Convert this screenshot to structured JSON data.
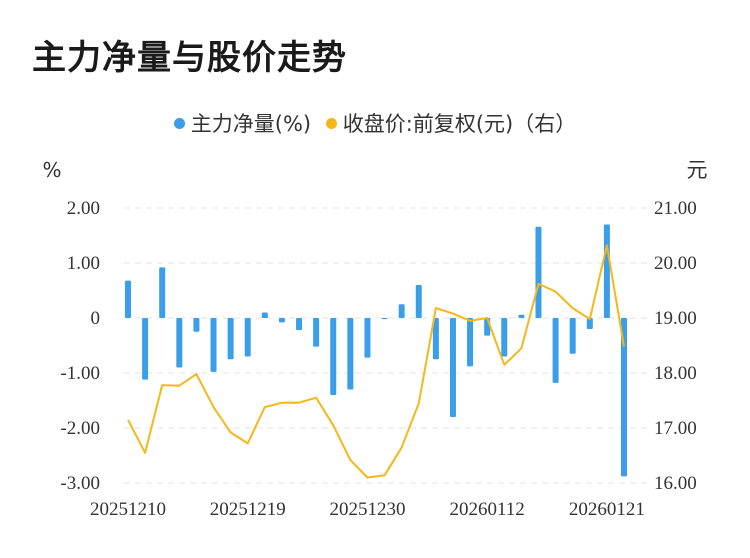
{
  "title": "主力净量与股价走势",
  "colors": {
    "bar": "#3b9ee8",
    "line": "#f5b71a",
    "grid": "#e3e3e3",
    "axis_text": "#333333"
  },
  "chart_data": {
    "type": "bar+line",
    "legend": {
      "position": "top-center",
      "entries": [
        "主力净量(%)",
        "收盘价:前复权(元)（右）"
      ]
    },
    "y_left": {
      "unit": "%",
      "min": -3.0,
      "max": 2.0,
      "ticks": [
        "2.00",
        "1.00",
        "0",
        "-1.00",
        "-2.00",
        "-3.00"
      ]
    },
    "y_right": {
      "unit": "元",
      "min": 16.0,
      "max": 21.0,
      "ticks": [
        "21.00",
        "20.00",
        "19.00",
        "18.00",
        "17.00",
        "16.00"
      ]
    },
    "x_tick_labels": [
      "20251210",
      "20251219",
      "20251230",
      "20260112",
      "20260121"
    ],
    "x_tick_indices": [
      0,
      7,
      14,
      21,
      28
    ],
    "grid": "horizontal-dashed",
    "series": [
      {
        "name": "主力净量(%)",
        "type": "bar",
        "axis": "left",
        "values": [
          0.68,
          -1.12,
          0.92,
          -0.9,
          -0.25,
          -0.98,
          -0.75,
          -0.7,
          0.1,
          -0.08,
          -0.22,
          -0.52,
          -1.4,
          -1.3,
          -0.72,
          -0.02,
          0.25,
          0.6,
          -0.75,
          -1.8,
          -0.88,
          -0.32,
          -0.7,
          0.06,
          1.66,
          -1.18,
          -0.65,
          -0.2,
          1.7,
          -2.88
        ]
      },
      {
        "name": "收盘价:前复权(元)（右）",
        "type": "line",
        "axis": "right",
        "values": [
          17.15,
          16.55,
          17.78,
          17.77,
          17.98,
          17.38,
          16.92,
          16.72,
          17.38,
          17.46,
          17.46,
          17.55,
          17.05,
          16.42,
          16.1,
          16.14,
          16.65,
          17.45,
          19.18,
          19.08,
          18.95,
          19.0,
          18.15,
          18.45,
          19.62,
          19.48,
          19.18,
          18.98,
          20.32,
          18.48
        ]
      }
    ]
  }
}
